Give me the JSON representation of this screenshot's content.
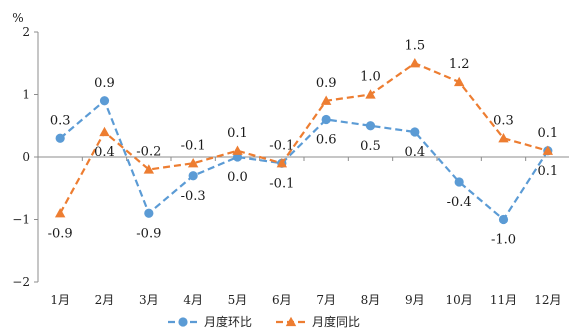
{
  "chart_data": {
    "type": "line",
    "ylabel": "%",
    "ylim": [
      -2,
      2
    ],
    "yticks": [
      "2",
      "1",
      "0",
      "−1",
      "−2"
    ],
    "ytick_values": [
      2,
      1,
      0,
      -1,
      -2
    ],
    "categories": [
      "1月",
      "2月",
      "3月",
      "4月",
      "5月",
      "6月",
      "7月",
      "8月",
      "9月",
      "10月",
      "11月",
      "12月"
    ],
    "grid": false,
    "legend_position": "bottom",
    "series": [
      {
        "name": "月度环比",
        "color": "#5b9bd5",
        "marker": "circle",
        "line_style": "dashed",
        "values": [
          0.3,
          0.9,
          -0.9,
          -0.3,
          0.0,
          -0.1,
          0.6,
          0.5,
          0.4,
          -0.4,
          -1.0,
          0.1
        ],
        "labels": [
          "0.3",
          "0.9",
          "-0.9",
          "-0.3",
          "0.0",
          "-0.1",
          "0.6",
          "0.5",
          "0.4",
          "-0.4",
          "-1.0",
          "0.1"
        ]
      },
      {
        "name": "月度同比",
        "color": "#ed7d31",
        "marker": "triangle",
        "line_style": "dashed",
        "values": [
          -0.9,
          0.4,
          -0.2,
          -0.1,
          0.1,
          -0.1,
          0.9,
          1.0,
          1.5,
          1.2,
          0.3,
          0.1
        ],
        "labels": [
          "-0.9",
          "0.4",
          "-0.2",
          "-0.1",
          "0.1",
          "-0.1",
          "0.9",
          "1.0",
          "1.5",
          "1.2",
          "0.3",
          "0.1"
        ]
      }
    ]
  }
}
